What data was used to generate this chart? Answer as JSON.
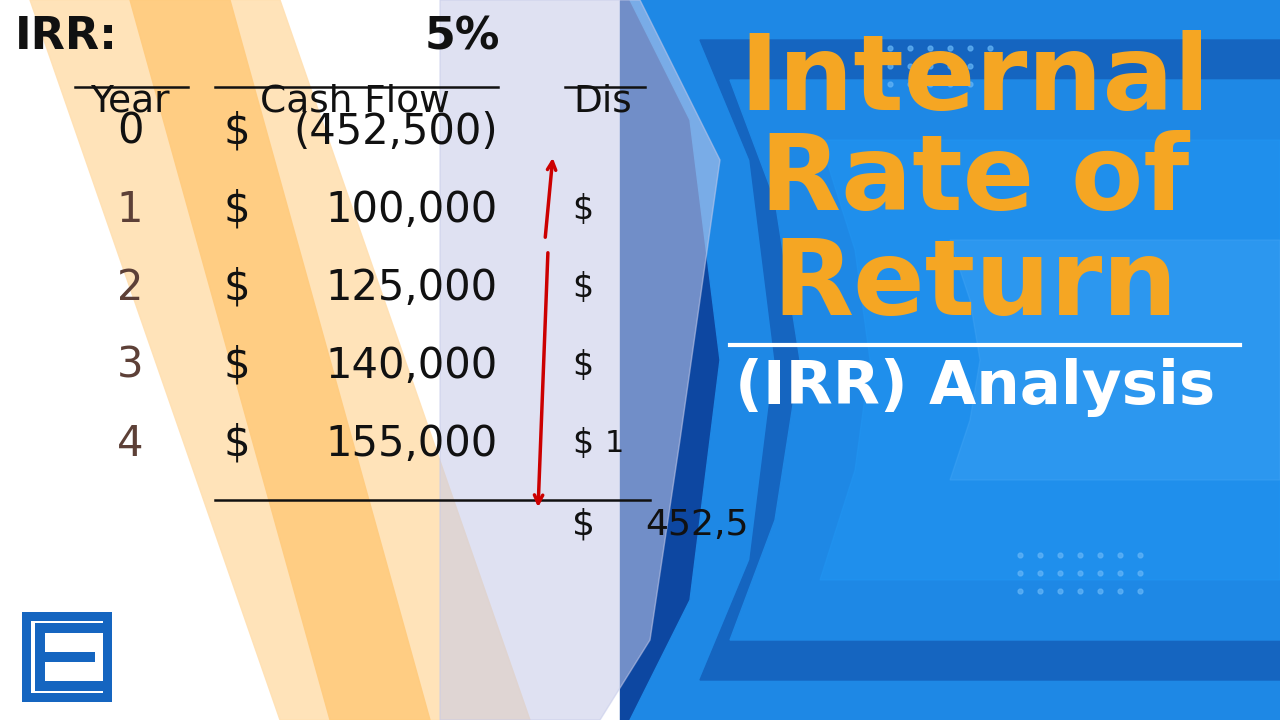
{
  "title_line1": "Internal",
  "title_line2": "Rate of",
  "title_line3": "Return",
  "subtitle": "(IRR) Analysis",
  "irr_label": "IRR:",
  "irr_value": "5%",
  "col_year": "Year",
  "col_cashflow": "Cash Flow",
  "col_dis": "Dis",
  "years": [
    "0",
    "1",
    "2",
    "3",
    "4"
  ],
  "cashflows": [
    "(452,500)",
    "100,000",
    "125,000",
    "140,000",
    "155,000"
  ],
  "total_label": "$",
  "total_value": "452,5",
  "title_color": "#F5A623",
  "bg_right_darkest": "#0D47A1",
  "bg_right_mid": "#1976D2",
  "bg_right_bright": "#1E88E5",
  "bg_right_light": "#29B6F6",
  "stripe_light": "#FFE0B2",
  "stripe_mid": "#FFCC80",
  "periwinkle": "#C5CAE9",
  "logo_blue": "#1565C0",
  "text_dark": "#111111",
  "year_brown": "#5D4037",
  "red_arrow": "#CC0000",
  "dot_color": "#90CAF9",
  "white": "#FFFFFF"
}
